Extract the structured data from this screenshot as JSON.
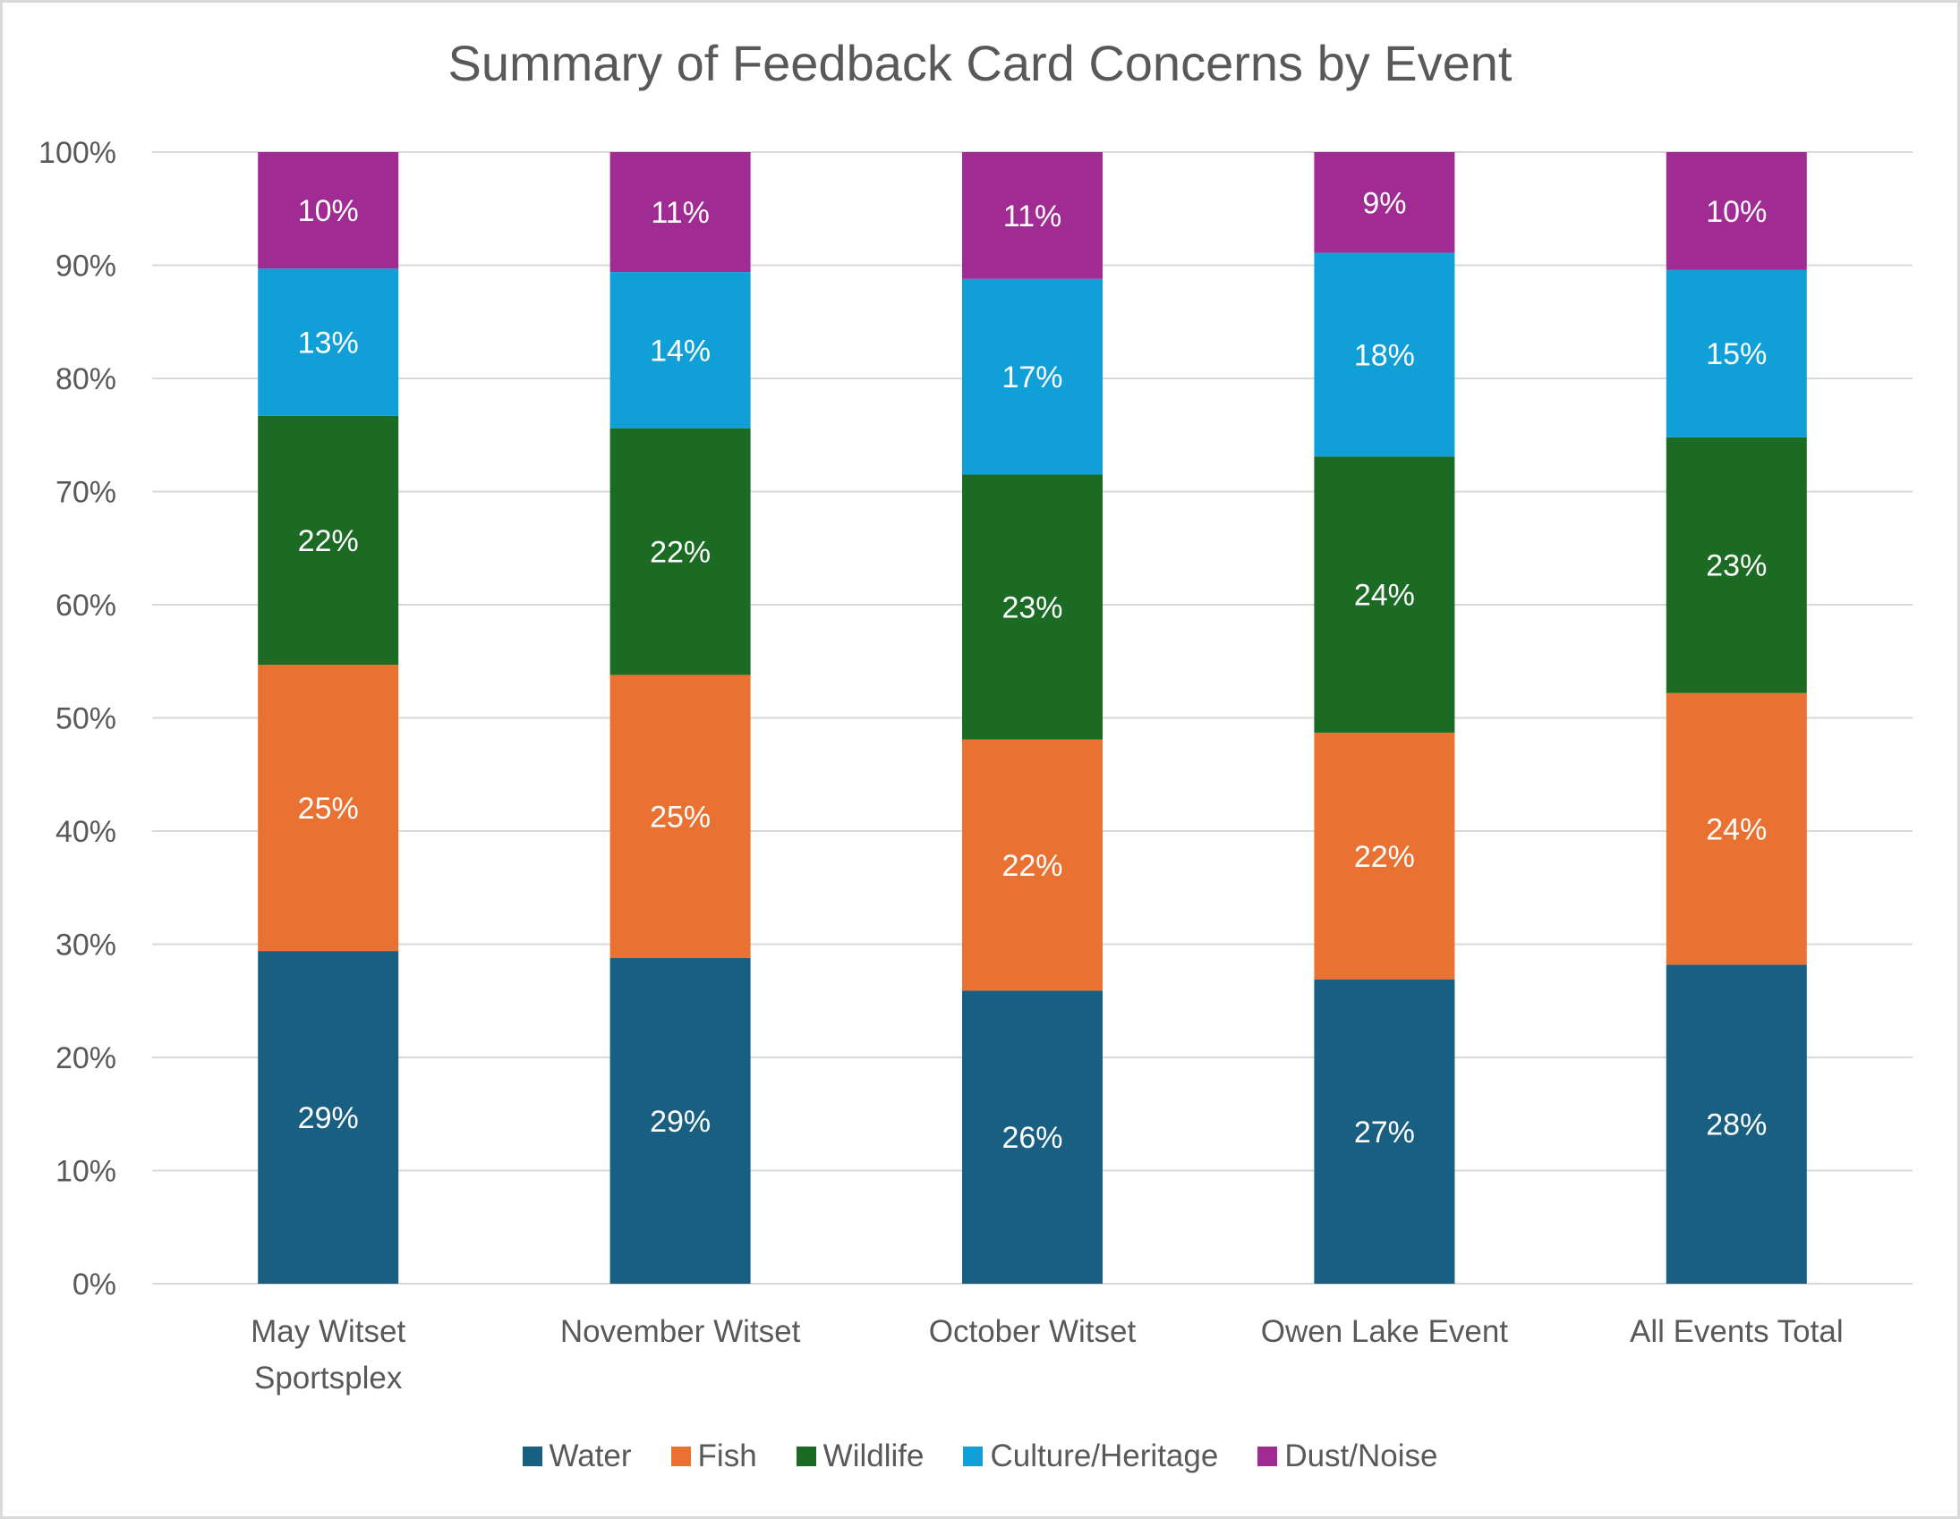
{
  "chart_data": {
    "type": "bar",
    "stacked": true,
    "title": "Summary of Feedback Card Concerns by Event",
    "xlabel": "",
    "ylabel": "",
    "ylim": [
      0,
      100
    ],
    "y_ticks": [
      "0%",
      "10%",
      "20%",
      "30%",
      "40%",
      "50%",
      "60%",
      "70%",
      "80%",
      "90%",
      "100%"
    ],
    "grid": true,
    "legend_position": "bottom",
    "categories": [
      [
        "May Witset",
        "Sportsplex"
      ],
      [
        "November Witset"
      ],
      [
        "October Witset"
      ],
      [
        "Owen Lake Event"
      ],
      [
        "All Events Total"
      ]
    ],
    "series": [
      {
        "name": "Water",
        "color": "#185f82",
        "values": [
          29.4,
          28.8,
          25.9,
          26.9,
          28.2
        ],
        "labels": [
          "29%",
          "29%",
          "26%",
          "27%",
          "28%"
        ]
      },
      {
        "name": "Fish",
        "color": "#e97132",
        "values": [
          25.3,
          25.0,
          22.2,
          21.8,
          24.0
        ],
        "labels": [
          "25%",
          "25%",
          "22%",
          "22%",
          "24%"
        ]
      },
      {
        "name": "Wildlife",
        "color": "#1b6b25",
        "values": [
          22.0,
          21.8,
          23.4,
          24.4,
          22.6
        ],
        "labels": [
          "22%",
          "22%",
          "23%",
          "24%",
          "23%"
        ]
      },
      {
        "name": "Culture/Heritage",
        "color": "#119fd8",
        "values": [
          13.0,
          13.8,
          17.3,
          18.0,
          14.8
        ],
        "labels": [
          "13%",
          "14%",
          "17%",
          "18%",
          "15%"
        ]
      },
      {
        "name": "Dust/Noise",
        "color": "#a02b93",
        "values": [
          10.3,
          10.6,
          11.2,
          8.9,
          10.4
        ],
        "labels": [
          "10%",
          "11%",
          "11%",
          "9%",
          "10%"
        ]
      }
    ]
  }
}
